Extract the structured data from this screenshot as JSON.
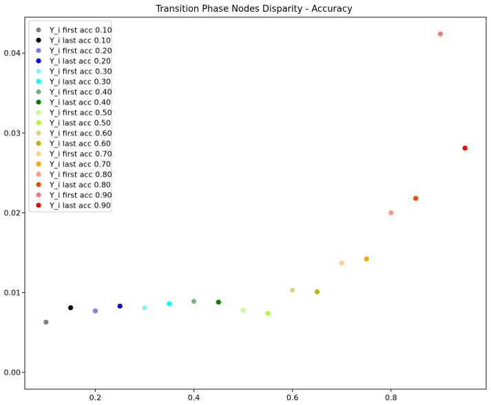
{
  "chart_data": {
    "type": "scatter",
    "title": "Transition Phase Nodes Disparity - Accuracy",
    "xlabel": "",
    "ylabel": "",
    "xlim": [
      0.057,
      0.993
    ],
    "ylim": [
      -0.0021,
      0.0445
    ],
    "x_ticks": [
      0.2,
      0.4,
      0.6,
      0.8
    ],
    "x_tick_labels": [
      "0.2",
      "0.4",
      "0.6",
      "0.8"
    ],
    "y_ticks": [
      0.0,
      0.01,
      0.02,
      0.03,
      0.04
    ],
    "y_tick_labels": [
      "0.00",
      "0.01",
      "0.02",
      "0.03",
      "0.04"
    ],
    "grid": false,
    "legend_position": "upper-left",
    "series": [
      {
        "name": "Y_i first acc 0.10",
        "color": "#808080",
        "x": [
          0.1
        ],
        "y": [
          0.0063
        ]
      },
      {
        "name": "Y_i last acc 0.10",
        "color": "#000000",
        "x": [
          0.15
        ],
        "y": [
          0.0081
        ]
      },
      {
        "name": "Y_i first acc 0.20",
        "color": "#7b7bf5",
        "x": [
          0.2
        ],
        "y": [
          0.0077
        ]
      },
      {
        "name": "Y_i last acc 0.20",
        "color": "#0000ff",
        "x": [
          0.25
        ],
        "y": [
          0.0083
        ]
      },
      {
        "name": "Y_i first acc 0.30",
        "color": "#7ff5f5",
        "x": [
          0.3
        ],
        "y": [
          0.0081
        ]
      },
      {
        "name": "Y_i last acc 0.30",
        "color": "#00ffff",
        "x": [
          0.35
        ],
        "y": [
          0.0086
        ]
      },
      {
        "name": "Y_i first acc 0.40",
        "color": "#74b574",
        "x": [
          0.4
        ],
        "y": [
          0.0089
        ]
      },
      {
        "name": "Y_i last acc 0.40",
        "color": "#007f00",
        "x": [
          0.45
        ],
        "y": [
          0.0088
        ]
      },
      {
        "name": "Y_i first acc 0.50",
        "color": "#ccfb8c",
        "x": [
          0.5
        ],
        "y": [
          0.0078
        ]
      },
      {
        "name": "Y_i last acc 0.50",
        "color": "#adff2f",
        "x": [
          0.55
        ],
        "y": [
          0.0074
        ]
      },
      {
        "name": "Y_i first acc 0.60",
        "color": "#dad57a",
        "x": [
          0.6
        ],
        "y": [
          0.0103
        ]
      },
      {
        "name": "Y_i last acc 0.60",
        "color": "#bfb300",
        "x": [
          0.65
        ],
        "y": [
          0.0101
        ]
      },
      {
        "name": "Y_i first acc 0.70",
        "color": "#f9d47f",
        "x": [
          0.7
        ],
        "y": [
          0.0137
        ]
      },
      {
        "name": "Y_i last acc 0.70",
        "color": "#ffa500",
        "x": [
          0.75
        ],
        "y": [
          0.0142
        ]
      },
      {
        "name": "Y_i first acc 0.80",
        "color": "#fa9b7b",
        "x": [
          0.8
        ],
        "y": [
          0.02
        ]
      },
      {
        "name": "Y_i last acc 0.80",
        "color": "#ff4500",
        "x": [
          0.85
        ],
        "y": [
          0.0218
        ]
      },
      {
        "name": "Y_i first acc 0.90",
        "color": "#f37878",
        "x": [
          0.9
        ],
        "y": [
          0.0424
        ]
      },
      {
        "name": "Y_i last acc 0.90",
        "color": "#ff0000",
        "x": [
          0.95
        ],
        "y": [
          0.0281
        ]
      }
    ]
  }
}
